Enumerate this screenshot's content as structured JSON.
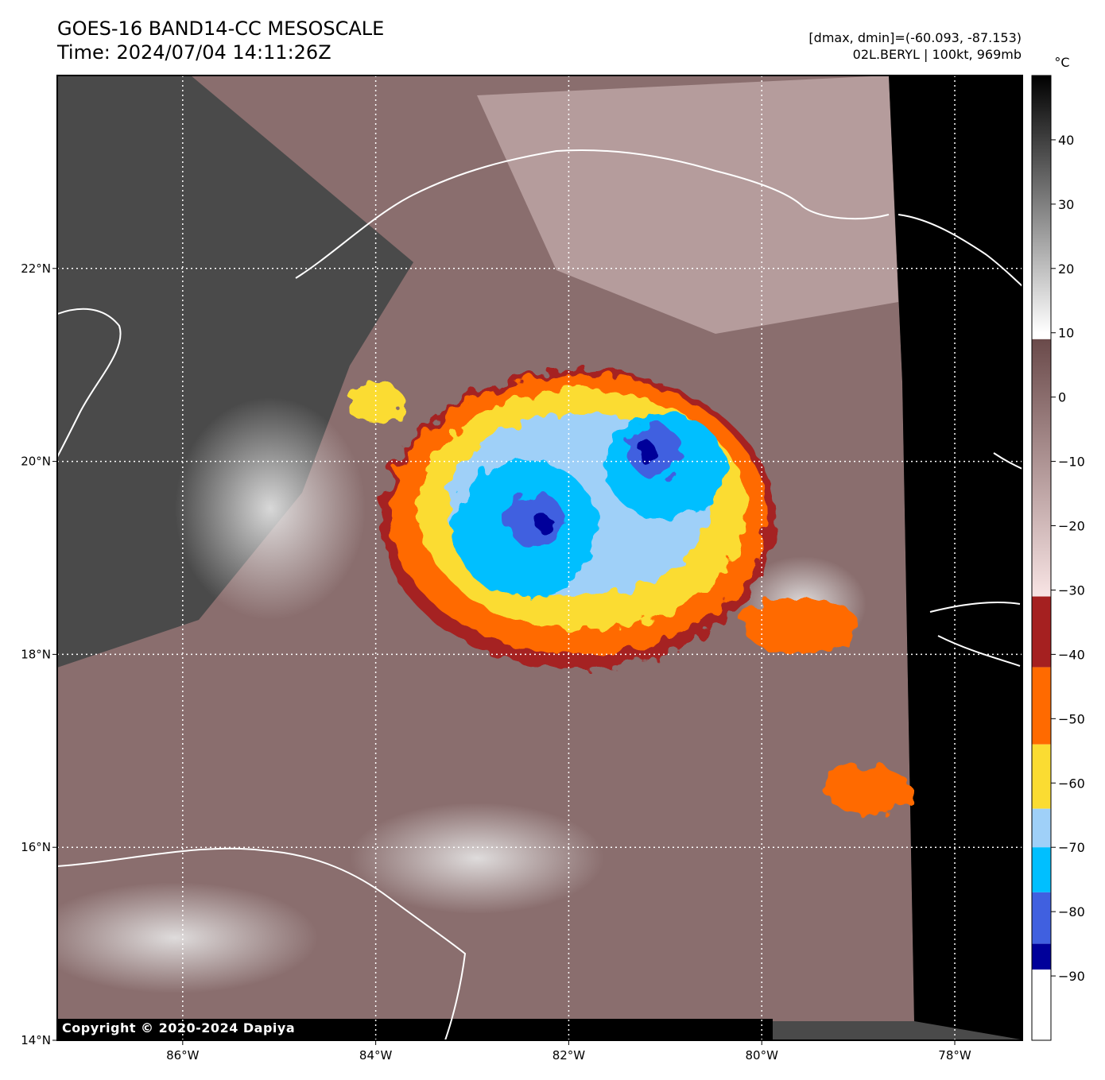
{
  "header": {
    "title_line1": "GOES-16 BAND14-CC MESOSCALE",
    "title_line2": "Time: 2024/07/04 14:11:26Z",
    "range_text": "[dmax, dmin]=(-60.093, -87.153)",
    "storm_text": "02L.BERYL | 100kt, 969mb"
  },
  "copyright": "Copyright © 2020-2024 Dapiya",
  "chart_data": {
    "type": "heatmap",
    "title": "GOES-16 BAND14-CC MESOSCALE",
    "lon_range": [
      -87.3,
      -77.3
    ],
    "lat_range": [
      14.0,
      24.0
    ],
    "x_ticks": [
      {
        "value": -86,
        "label": "86°W"
      },
      {
        "value": -84,
        "label": "84°W"
      },
      {
        "value": -82,
        "label": "82°W"
      },
      {
        "value": -80,
        "label": "80°W"
      },
      {
        "value": -78,
        "label": "78°W"
      }
    ],
    "y_ticks": [
      {
        "value": 14,
        "label": "14°N"
      },
      {
        "value": 16,
        "label": "16°N"
      },
      {
        "value": 18,
        "label": "18°N"
      },
      {
        "value": 20,
        "label": "20°N"
      },
      {
        "value": 22,
        "label": "22°N"
      }
    ],
    "grid": true,
    "colorbar": {
      "unit": "°C",
      "range": [
        -100,
        50
      ],
      "ticks": [
        40,
        30,
        20,
        10,
        0,
        -10,
        -20,
        -30,
        -40,
        -50,
        -60,
        -70,
        -80,
        -90
      ],
      "tick_labels": [
        "40",
        "30",
        "20",
        "10",
        "0",
        "−10",
        "−20",
        "−30",
        "−40",
        "−50",
        "−60",
        "−70",
        "−80",
        "−90"
      ],
      "bands": [
        {
          "from": 10,
          "to": 50,
          "color_from": "#ffffff",
          "color_to": "#000000"
        },
        {
          "from": -31,
          "to": 9,
          "color_from": "#f8e4e4",
          "color_to": "#6a4a4a"
        },
        {
          "from": -42,
          "to": -31,
          "color": "#a52020"
        },
        {
          "from": -54,
          "to": -42,
          "color": "#ff6a00"
        },
        {
          "from": -64,
          "to": -54,
          "color": "#fbdc32"
        },
        {
          "from": -70,
          "to": -64,
          "color": "#9fd0f8"
        },
        {
          "from": -77,
          "to": -70,
          "color": "#00bfff"
        },
        {
          "from": -85,
          "to": -77,
          "color": "#4060e0"
        },
        {
          "from": -89,
          "to": -85,
          "color": "#00009a"
        },
        {
          "from": -100,
          "to": -89,
          "color": "#ffffff"
        }
      ]
    },
    "storm_blobs": [
      {
        "lon": -81.9,
        "lat": 19.4,
        "rx": 2.05,
        "ry": 1.55,
        "color": "#a52020"
      },
      {
        "lon": -81.9,
        "lat": 19.45,
        "rx": 1.95,
        "ry": 1.45,
        "color": "#ff6a00"
      },
      {
        "lon": -81.85,
        "lat": 19.5,
        "rx": 1.7,
        "ry": 1.25,
        "color": "#fbdc32"
      },
      {
        "lon": -81.9,
        "lat": 19.55,
        "rx": 1.35,
        "ry": 0.95,
        "color": "#9fd0f8"
      },
      {
        "lon": -82.45,
        "lat": 19.3,
        "rx": 0.75,
        "ry": 0.72,
        "color": "#00bfff"
      },
      {
        "lon": -81.0,
        "lat": 19.95,
        "rx": 0.62,
        "ry": 0.55,
        "color": "#00bfff"
      },
      {
        "lon": -82.35,
        "lat": 19.4,
        "rx": 0.3,
        "ry": 0.28,
        "color": "#4060e0"
      },
      {
        "lon": -81.1,
        "lat": 20.1,
        "rx": 0.27,
        "ry": 0.28,
        "color": "#4060e0"
      },
      {
        "lon": -82.25,
        "lat": 19.35,
        "rx": 0.1,
        "ry": 0.08,
        "color": "#00009a"
      },
      {
        "lon": -81.2,
        "lat": 20.1,
        "rx": 0.09,
        "ry": 0.12,
        "color": "#00009a"
      },
      {
        "lon": -84.0,
        "lat": 20.6,
        "rx": 0.3,
        "ry": 0.22,
        "color": "#fbdc32"
      },
      {
        "lon": -78.9,
        "lat": 16.6,
        "rx": 0.45,
        "ry": 0.25,
        "color": "#ff6a00"
      },
      {
        "lon": -79.6,
        "lat": 18.3,
        "rx": 0.6,
        "ry": 0.3,
        "color": "#ff6a00"
      }
    ],
    "annotations": [
      "[dmax, dmin]=(-60.093, -87.153)",
      "02L.BERYL | 100kt, 969mb"
    ]
  }
}
